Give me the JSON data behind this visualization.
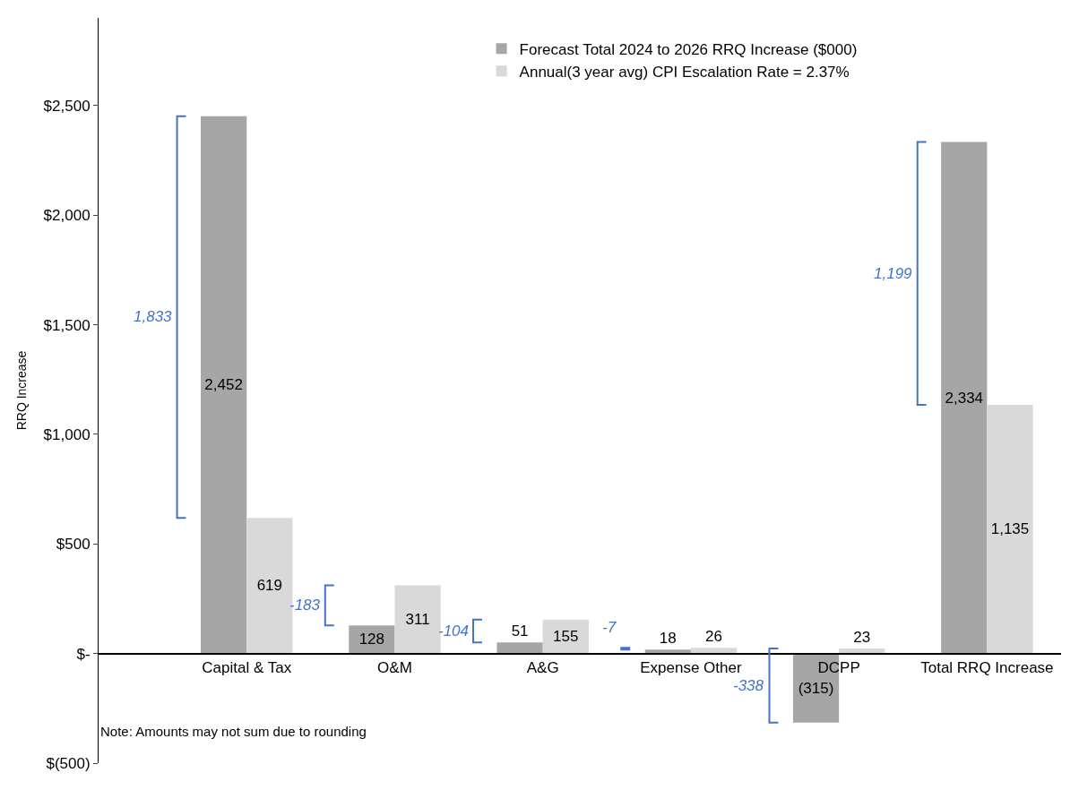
{
  "chart_data": {
    "type": "bar",
    "ylabel": "RRQ Increase",
    "categories": [
      "Capital & Tax",
      "O&M",
      "A&G",
      "Expense Other",
      "DCPP",
      "Total RRQ Increase"
    ],
    "series": [
      {
        "name": "Forecast Total 2024 to 2026 RRQ Increase ($000)",
        "color": "#a6a6a6",
        "values": [
          2452,
          128,
          51,
          18,
          -315,
          2334
        ],
        "value_labels": [
          "2,452",
          "128",
          "51",
          "18",
          "(315)",
          "2,334"
        ]
      },
      {
        "name": "Annual(3 year avg) CPI Escalation Rate = 2.37%",
        "color": "#d9d9d9",
        "values": [
          619,
          311,
          155,
          26,
          23,
          1135
        ],
        "value_labels": [
          "619",
          "311",
          "155",
          "26",
          "23",
          "1,135"
        ]
      }
    ],
    "ylim": [
      -500,
      2900
    ],
    "yticks": [
      {
        "value": -500,
        "label": "$(500)"
      },
      {
        "value": 0,
        "label": "$-"
      },
      {
        "value": 500,
        "label": "$500"
      },
      {
        "value": 1000,
        "label": "$1,000"
      },
      {
        "value": 1500,
        "label": "$1,500"
      },
      {
        "value": 2000,
        "label": "$2,000"
      },
      {
        "value": 2500,
        "label": "$2,500"
      }
    ],
    "annotations": [
      "1,833",
      "-183",
      "-104",
      "-7",
      "-338",
      "1,199",
      "Note: Amounts may not sum due to rounding"
    ],
    "legend": "top"
  }
}
